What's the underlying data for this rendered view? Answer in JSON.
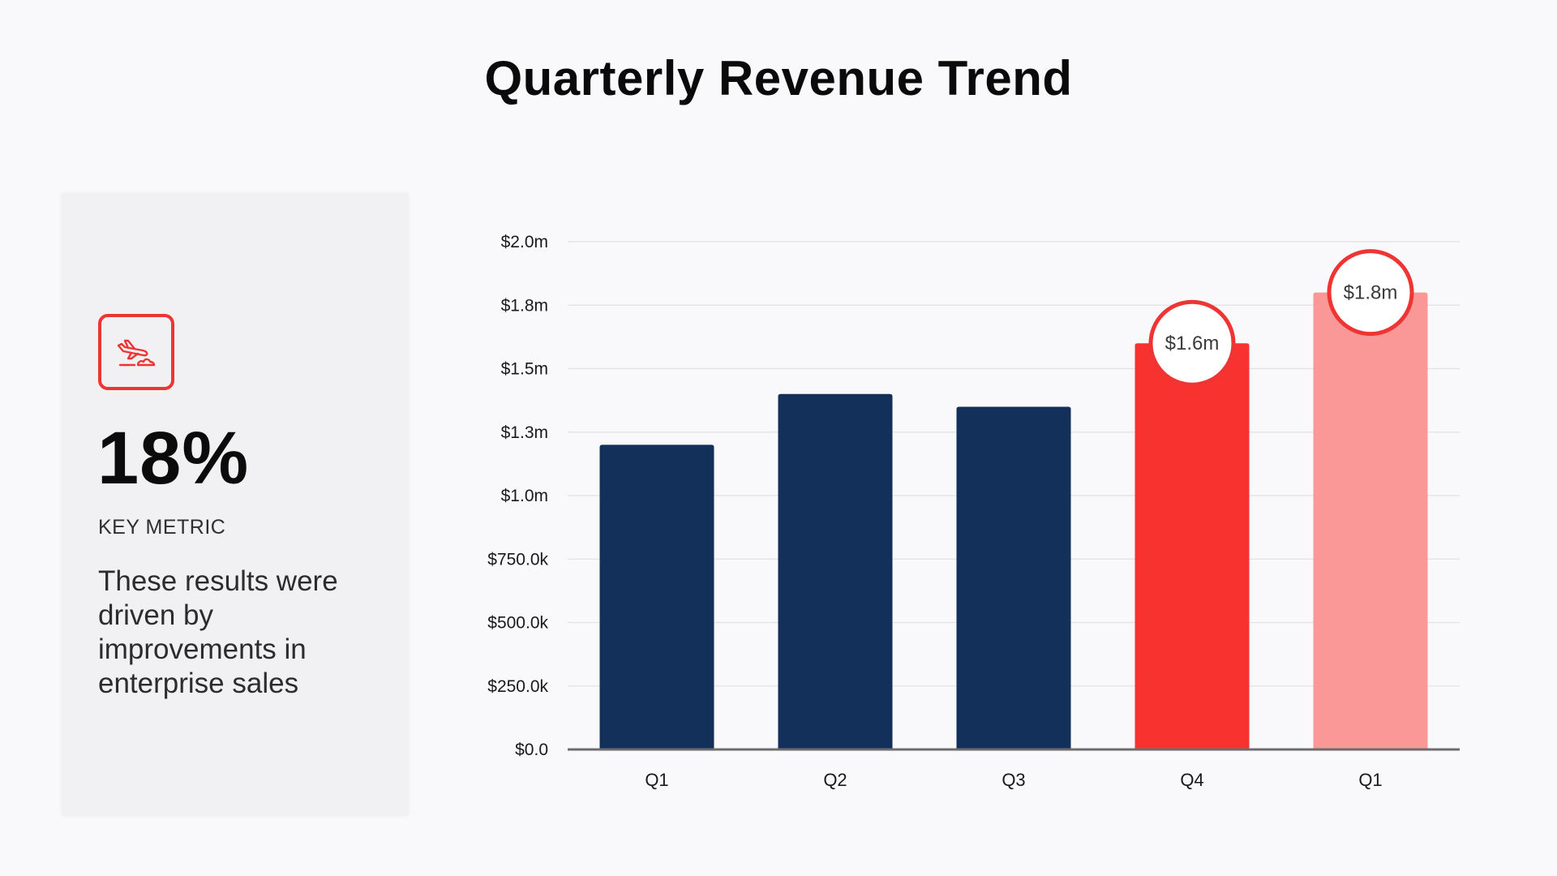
{
  "title": "Quarterly Revenue Trend",
  "card": {
    "icon": "airplane-landing-icon",
    "metric_value": "18%",
    "metric_label": "KEY METRIC",
    "description": "These results were driven by improvements in enterprise sales"
  },
  "colors": {
    "navy": "#13305a",
    "red": "#f8332f",
    "light_red": "#fa9797",
    "accent": "#ef3434"
  },
  "chart_data": {
    "type": "bar",
    "categories": [
      "Q1",
      "Q2",
      "Q3",
      "Q4",
      "Q1"
    ],
    "values": [
      1.2,
      1.4,
      1.35,
      1.6,
      1.8
    ],
    "value_unit": "$m",
    "bar_colors": [
      "#13305a",
      "#13305a",
      "#13305a",
      "#f8332f",
      "#fa9797"
    ],
    "data_labels": [
      "",
      "",
      "",
      "$1.6m",
      "$1.8m"
    ],
    "y_ticks": [
      {
        "value": 0,
        "label": "$0.0"
      },
      {
        "value": 0.25,
        "label": "$250.0k"
      },
      {
        "value": 0.5,
        "label": "$500.0k"
      },
      {
        "value": 0.75,
        "label": "$750.0k"
      },
      {
        "value": 1.0,
        "label": "$1.0m"
      },
      {
        "value": 1.25,
        "label": "$1.3m"
      },
      {
        "value": 1.5,
        "label": "$1.5m"
      },
      {
        "value": 1.75,
        "label": "$1.8m"
      },
      {
        "value": 2.0,
        "label": "$2.0m"
      }
    ],
    "ylim": [
      0,
      2.0
    ],
    "grid": true,
    "xlabel": "",
    "ylabel": "",
    "legend": "none"
  }
}
